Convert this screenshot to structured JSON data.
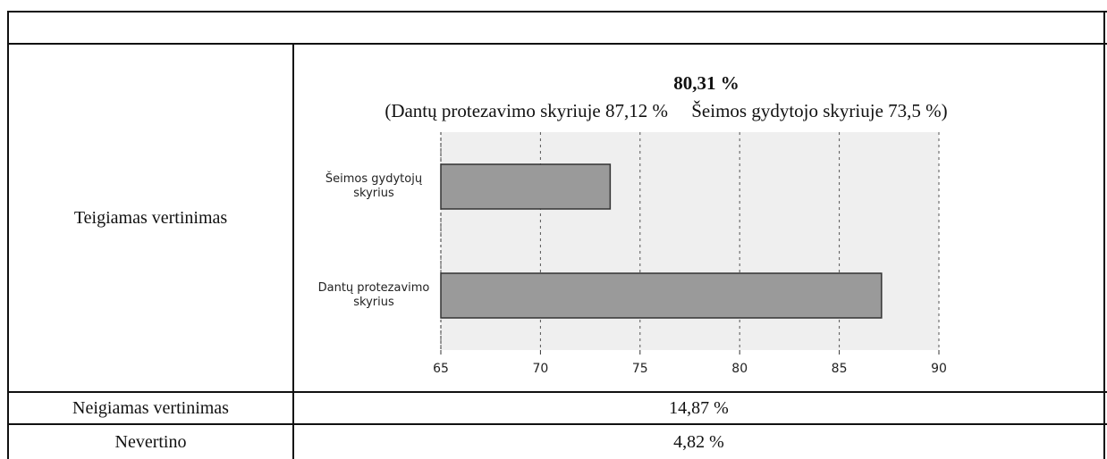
{
  "table": {
    "rows": [
      {
        "label": "Teigiamas vertinimas"
      },
      {
        "label": "Neigiamas vertinimas",
        "value": "14,87 %"
      },
      {
        "label": "Nevertino",
        "value": "4,82 %"
      }
    ]
  },
  "chart_data": {
    "type": "bar",
    "orientation": "horizontal",
    "title": "80,31 %",
    "subtitle": "(Dantų protezavimo skyriuje 87,12 %     Šeimos gydytojo skyriuje 73,5 %)",
    "categories": [
      "Šeimos gydytojų skyrius",
      "Dantų protezavimo skyrius"
    ],
    "values": [
      73.5,
      87.12
    ],
    "color": "#9a9a9a",
    "xlim": [
      65,
      90
    ],
    "xticks": [
      65,
      70,
      75,
      80,
      85,
      90
    ],
    "grid": true
  }
}
